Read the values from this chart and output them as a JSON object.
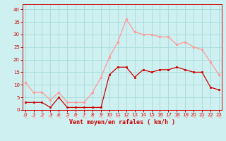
{
  "x": [
    0,
    1,
    2,
    3,
    4,
    5,
    6,
    7,
    8,
    9,
    10,
    11,
    12,
    13,
    14,
    15,
    16,
    17,
    18,
    19,
    20,
    21,
    22,
    23
  ],
  "vent_moyen": [
    3,
    3,
    3,
    1,
    5,
    1,
    1,
    1,
    1,
    1,
    14,
    17,
    17,
    13,
    16,
    15,
    16,
    16,
    17,
    16,
    15,
    15,
    9,
    8
  ],
  "rafales": [
    11,
    7,
    7,
    4,
    7,
    3,
    3,
    3,
    7,
    13,
    21,
    27,
    36,
    31,
    30,
    30,
    29,
    29,
    26,
    27,
    25,
    24,
    19,
    14
  ],
  "bg_color": "#cff0f0",
  "grid_color": "#aadddd",
  "line_color_moyen": "#cc0000",
  "line_color_rafales": "#ff9999",
  "xlabel": "Vent moyen/en rafales ( km/h )",
  "xlabel_color": "#cc0000",
  "tick_color": "#cc0000",
  "spine_color": "#cc0000",
  "ylim": [
    0,
    42
  ],
  "xlim": [
    -0.3,
    23.3
  ],
  "yticks": [
    0,
    5,
    10,
    15,
    20,
    25,
    30,
    35,
    40
  ],
  "xticks": [
    0,
    1,
    2,
    3,
    4,
    5,
    6,
    7,
    8,
    9,
    10,
    11,
    12,
    13,
    14,
    15,
    16,
    17,
    18,
    19,
    20,
    21,
    22,
    23
  ]
}
